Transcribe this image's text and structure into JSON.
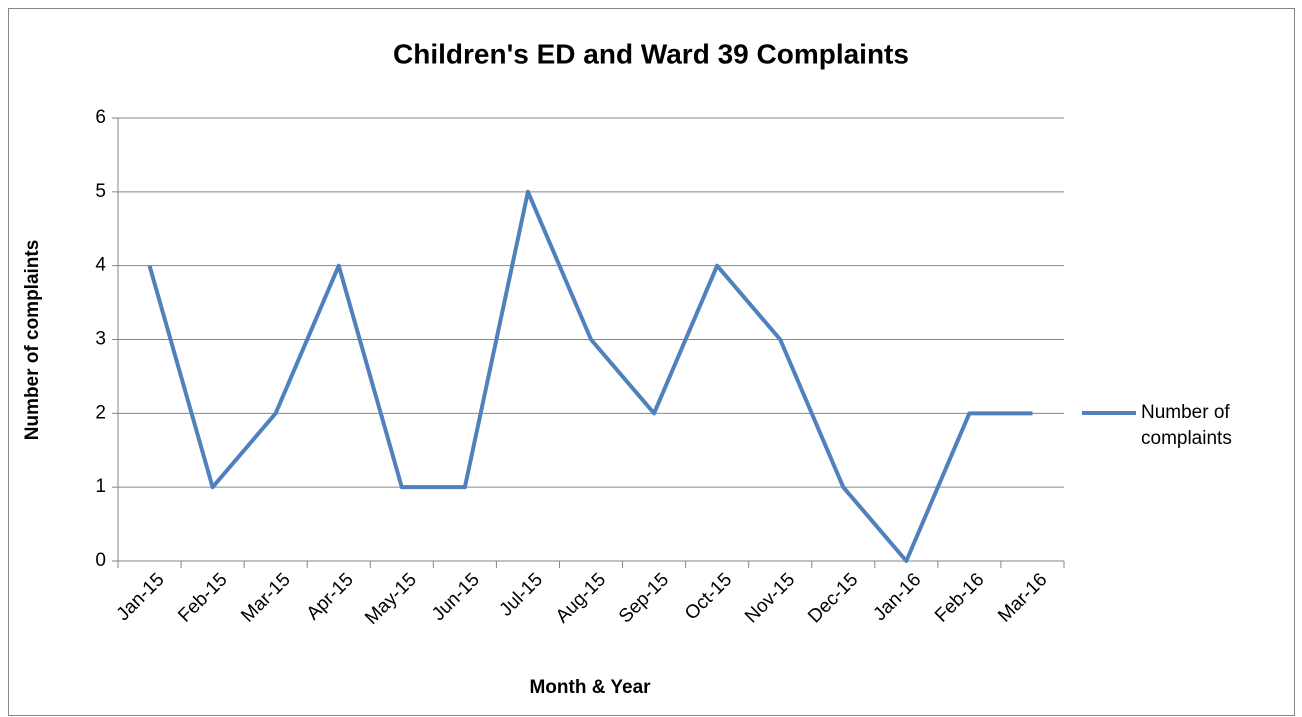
{
  "chart_data": {
    "type": "line",
    "title": "Children's ED and Ward 39 Complaints",
    "x_label": "Month & Year",
    "y_label": "Number of complaints",
    "categories": [
      "Jan-15",
      "Feb-15",
      "Mar-15",
      "Apr-15",
      "May-15",
      "Jun-15",
      "Jul-15",
      "Aug-15",
      "Sep-15",
      "Oct-15",
      "Nov-15",
      "Dec-15",
      "Jan-16",
      "Feb-16",
      "Mar-16"
    ],
    "series": [
      {
        "name": "Number of complaints",
        "color": "#4f81bd",
        "values": [
          4,
          1,
          2,
          4,
          1,
          1,
          5,
          3,
          2,
          4,
          3,
          1,
          0,
          2,
          2
        ]
      }
    ],
    "ylim": [
      0,
      6
    ],
    "yticks": [
      0,
      1,
      2,
      3,
      4,
      5,
      6
    ],
    "grid": true,
    "legend": "right"
  }
}
